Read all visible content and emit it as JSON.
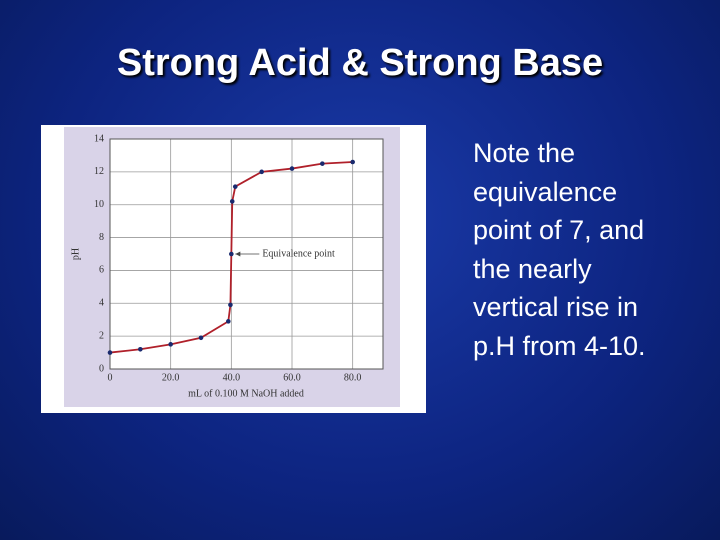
{
  "slide": {
    "title": "Strong Acid & Strong Base",
    "body_lines": [
      "Note the",
      "equivalence",
      "point of 7, and",
      "the nearly",
      "vertical rise in",
      "p.H from 4-10."
    ]
  },
  "chart_data": {
    "type": "line",
    "x_label": "mL of 0.100 M NaOH added",
    "y_label": "pH",
    "annotation": "Equivalence point",
    "x": [
      0,
      10,
      20,
      30,
      39,
      39.7,
      40,
      40.3,
      41.3,
      50,
      60,
      70,
      80
    ],
    "series": [
      {
        "name": "pH",
        "color": "#b0202a",
        "marker_color": "#1a2a6e",
        "values": [
          1.0,
          1.2,
          1.5,
          1.9,
          2.9,
          3.9,
          7.0,
          10.2,
          11.1,
          12.0,
          12.2,
          12.5,
          12.6
        ]
      }
    ],
    "xlim": [
      0,
      90
    ],
    "ylim": [
      0,
      14
    ],
    "xticks": [
      0,
      {
        "value": 20,
        "label": "20.0"
      },
      {
        "value": 40,
        "label": "40.0"
      },
      {
        "value": 60,
        "label": "60.0"
      },
      {
        "value": 80,
        "label": "80.0"
      }
    ],
    "yticks": [
      0,
      2,
      4,
      6,
      8,
      10,
      12,
      14
    ],
    "grid": true
  }
}
